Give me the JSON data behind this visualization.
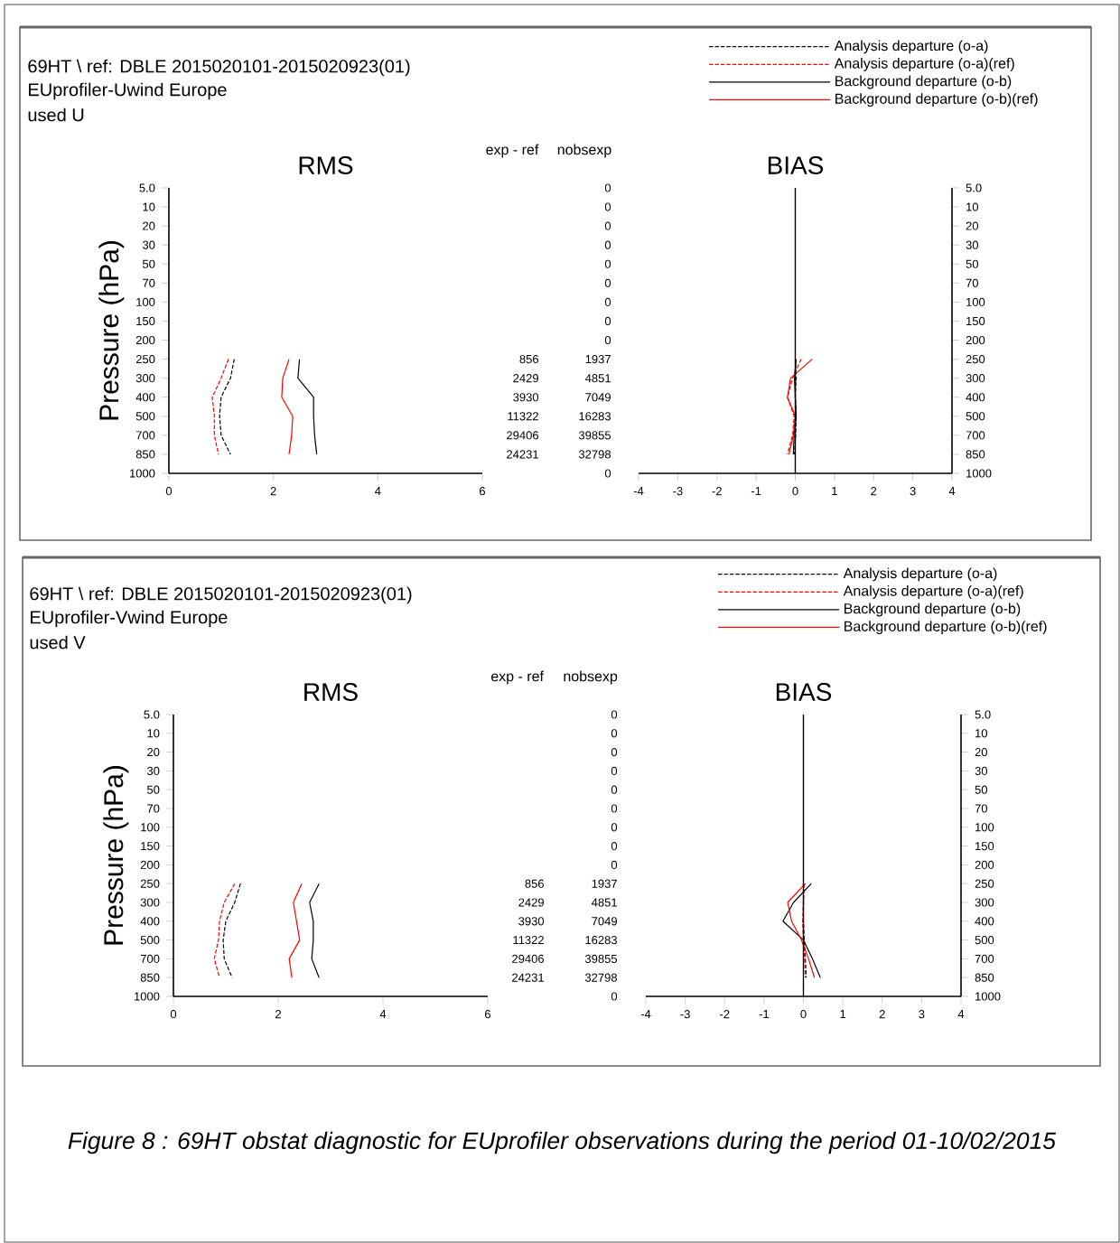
{
  "chart_data": [
    {
      "type": "line",
      "orientation": "horizontal",
      "title": "RMS",
      "ylabel": "Pressure (hPa)",
      "categories": [
        "5.0",
        "10",
        "20",
        "30",
        "50",
        "70",
        "100",
        "150",
        "200",
        "250",
        "300",
        "400",
        "500",
        "700",
        "850",
        "1000"
      ],
      "xlim": [
        0,
        6
      ],
      "xticks": [
        0,
        2,
        4,
        6
      ],
      "series": [
        {
          "color": "#000000",
          "line_style": "dashed",
          "values": [
            null,
            null,
            null,
            null,
            null,
            null,
            null,
            null,
            null,
            1.25,
            1.18,
            1.0,
            0.97,
            1.0,
            1.18,
            null
          ]
        },
        {
          "color": "#ff0000",
          "line_style": "dashed",
          "values": [
            null,
            null,
            null,
            null,
            null,
            null,
            null,
            null,
            null,
            1.14,
            1.0,
            0.83,
            0.87,
            0.87,
            0.95,
            null
          ]
        },
        {
          "color": "#000000",
          "line_style": "solid",
          "values": [
            null,
            null,
            null,
            null,
            null,
            null,
            null,
            null,
            null,
            2.5,
            2.47,
            2.77,
            2.77,
            2.79,
            2.83,
            null
          ]
        },
        {
          "color": "#ff0000",
          "line_style": "solid",
          "values": [
            null,
            null,
            null,
            null,
            null,
            null,
            null,
            null,
            null,
            2.3,
            2.18,
            2.16,
            2.37,
            2.35,
            2.3,
            null
          ]
        }
      ],
      "annotations": [
        "69HT \\ ref: DBLE 2015020101-2015020923(01)",
        "EUprofiler-Uwind Europe",
        "used U",
        "Figure 8 : 69HT obstat diagnostic for EUprofiler observations during the period 01-10/02/2015"
      ]
    },
    {
      "type": "heatmap",
      "data_labels": true,
      "tick_labels": "x",
      "categories": [
        "exp - ref",
        "nobsexp"
      ],
      "y_categories": [
        "5.0",
        "10",
        "20",
        "30",
        "50",
        "70",
        "100",
        "150",
        "200",
        "250",
        "300",
        "400",
        "500",
        "700",
        "850",
        "1000"
      ],
      "cells": [
        [
          null,
          0
        ],
        [
          null,
          0
        ],
        [
          null,
          0
        ],
        [
          null,
          0
        ],
        [
          null,
          0
        ],
        [
          null,
          0
        ],
        [
          null,
          0
        ],
        [
          null,
          0
        ],
        [
          null,
          0
        ],
        [
          856,
          1937
        ],
        [
          2429,
          4851
        ],
        [
          3930,
          7049
        ],
        [
          11322,
          16283
        ],
        [
          29406,
          39855
        ],
        [
          24231,
          32798
        ],
        [
          null,
          0
        ]
      ]
    },
    {
      "type": "line",
      "orientation": "horizontal",
      "title": "BIAS",
      "categories": [
        "5.0",
        "10",
        "20",
        "30",
        "50",
        "70",
        "100",
        "150",
        "200",
        "250",
        "300",
        "400",
        "500",
        "700",
        "850",
        "1000"
      ],
      "xlim": [
        -4,
        4
      ],
      "xticks": [
        -4,
        -3,
        -2,
        -1,
        0,
        1,
        2,
        3,
        4
      ],
      "legend": "top right",
      "ref_lines": [
        {
          "axis": "x",
          "value": 0
        }
      ],
      "series": [
        {
          "name": "Analysis departure (o-a)",
          "color": "#000000",
          "line_style": "dashed",
          "values": [
            null,
            null,
            null,
            null,
            null,
            null,
            null,
            null,
            null,
            0.0,
            0.02,
            0.0,
            0.02,
            0.01,
            -0.02,
            null
          ]
        },
        {
          "name": "Analysis departure (o-a)(ref)",
          "color": "#ff0000",
          "line_style": "dashed",
          "values": [
            null,
            null,
            null,
            null,
            null,
            null,
            null,
            null,
            null,
            0.15,
            -0.07,
            -0.2,
            -0.03,
            -0.07,
            -0.2,
            null
          ]
        },
        {
          "name": "Background departure (o-b)",
          "color": "#000000",
          "line_style": "solid",
          "values": [
            null,
            null,
            null,
            null,
            null,
            null,
            null,
            null,
            null,
            0.02,
            -0.02,
            0.0,
            0.02,
            -0.03,
            -0.05,
            null
          ]
        },
        {
          "name": "Background departure (o-b)(ref)",
          "color": "#ff0000",
          "line_style": "solid",
          "values": [
            null,
            null,
            null,
            null,
            null,
            null,
            null,
            null,
            null,
            0.43,
            -0.12,
            -0.2,
            0.0,
            -0.05,
            -0.16,
            null
          ]
        }
      ]
    },
    {
      "type": "line",
      "orientation": "horizontal",
      "title": "RMS",
      "ylabel": "Pressure (hPa)",
      "categories": [
        "5.0",
        "10",
        "20",
        "30",
        "50",
        "70",
        "100",
        "150",
        "200",
        "250",
        "300",
        "400",
        "500",
        "700",
        "850",
        "1000"
      ],
      "xlim": [
        0,
        6
      ],
      "xticks": [
        0,
        2,
        4,
        6
      ],
      "series": [
        {
          "color": "#000000",
          "line_style": "dashed",
          "values": [
            null,
            null,
            null,
            null,
            null,
            null,
            null,
            null,
            null,
            1.28,
            1.17,
            1.0,
            0.95,
            0.97,
            1.12,
            null
          ]
        },
        {
          "color": "#ff0000",
          "line_style": "dashed",
          "values": [
            null,
            null,
            null,
            null,
            null,
            null,
            null,
            null,
            null,
            1.17,
            0.97,
            0.88,
            0.86,
            0.78,
            0.88,
            null
          ]
        },
        {
          "color": "#000000",
          "line_style": "solid",
          "values": [
            null,
            null,
            null,
            null,
            null,
            null,
            null,
            null,
            null,
            2.78,
            2.6,
            2.67,
            2.67,
            2.64,
            2.78,
            null
          ]
        },
        {
          "color": "#ff0000",
          "line_style": "solid",
          "values": [
            null,
            null,
            null,
            null,
            null,
            null,
            null,
            null,
            null,
            2.45,
            2.29,
            2.35,
            2.41,
            2.21,
            2.26,
            null
          ]
        }
      ],
      "annotations": [
        "69HT \\ ref: DBLE 2015020101-2015020923(01)",
        "EUprofiler-Vwind Europe",
        "used V"
      ]
    },
    {
      "type": "heatmap",
      "data_labels": true,
      "tick_labels": "x",
      "categories": [
        "exp - ref",
        "nobsexp"
      ],
      "y_categories": [
        "5.0",
        "10",
        "20",
        "30",
        "50",
        "70",
        "100",
        "150",
        "200",
        "250",
        "300",
        "400",
        "500",
        "700",
        "850",
        "1000"
      ],
      "cells": [
        [
          null,
          0
        ],
        [
          null,
          0
        ],
        [
          null,
          0
        ],
        [
          null,
          0
        ],
        [
          null,
          0
        ],
        [
          null,
          0
        ],
        [
          null,
          0
        ],
        [
          null,
          0
        ],
        [
          null,
          0
        ],
        [
          856,
          1937
        ],
        [
          2429,
          4851
        ],
        [
          3930,
          7049
        ],
        [
          11322,
          16283
        ],
        [
          29406,
          39855
        ],
        [
          24231,
          32798
        ],
        [
          null,
          0
        ]
      ]
    },
    {
      "type": "line",
      "orientation": "horizontal",
      "title": "BIAS",
      "categories": [
        "5.0",
        "10",
        "20",
        "30",
        "50",
        "70",
        "100",
        "150",
        "200",
        "250",
        "300",
        "400",
        "500",
        "700",
        "850",
        "1000"
      ],
      "xlim": [
        -4,
        4
      ],
      "xticks": [
        -4,
        -3,
        -2,
        -1,
        0,
        1,
        2,
        3,
        4
      ],
      "legend": "top right",
      "ref_lines": [
        {
          "axis": "x",
          "value": 0
        }
      ],
      "series": [
        {
          "name": "Analysis departure (o-a)",
          "color": "#000000",
          "line_style": "dashed",
          "values": [
            null,
            null,
            null,
            null,
            null,
            null,
            null,
            null,
            null,
            0.0,
            0.0,
            0.0,
            0.02,
            0.05,
            0.07,
            null
          ]
        },
        {
          "name": "Analysis departure (o-a)(ref)",
          "color": "#ff0000",
          "line_style": "dashed",
          "values": [
            null,
            null,
            null,
            null,
            null,
            null,
            null,
            null,
            null,
            0.02,
            0.0,
            -0.02,
            0.0,
            0.03,
            0.05,
            null
          ]
        },
        {
          "name": "Background departure (o-b)",
          "color": "#000000",
          "line_style": "solid",
          "values": [
            null,
            null,
            null,
            null,
            null,
            null,
            null,
            null,
            null,
            0.2,
            -0.25,
            -0.52,
            0.0,
            0.23,
            0.43,
            null
          ]
        },
        {
          "name": "Background departure (o-b)(ref)",
          "color": "#ff0000",
          "line_style": "solid",
          "values": [
            null,
            null,
            null,
            null,
            null,
            null,
            null,
            null,
            null,
            0.05,
            -0.4,
            -0.3,
            -0.05,
            0.13,
            0.28,
            null
          ]
        }
      ]
    }
  ]
}
